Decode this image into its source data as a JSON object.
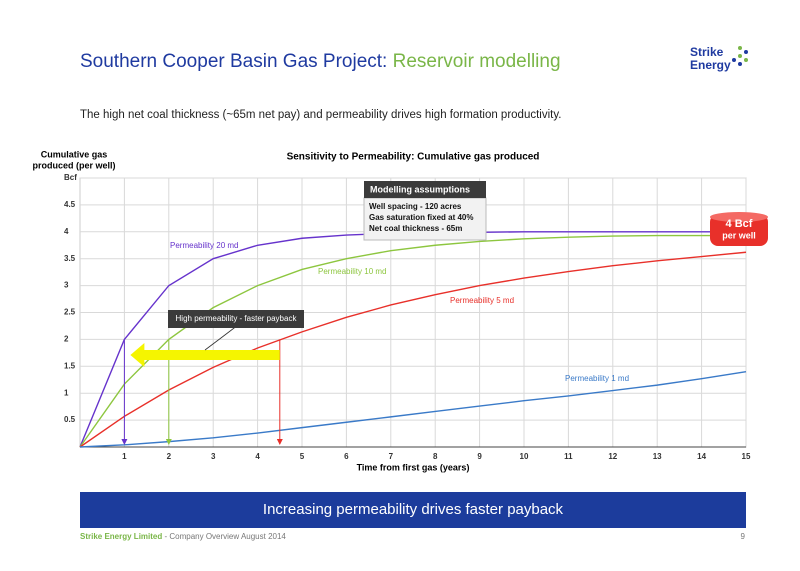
{
  "header": {
    "title": "Southern Cooper Basin Gas Project:",
    "title_highlight": "Reservoir modelling",
    "logo": [
      "Strike",
      "Energy"
    ]
  },
  "subtitle": "The high net coal thickness (~65m net pay) and permeability drives high formation productivity.",
  "chart_data": {
    "type": "line",
    "title": "Sensitivity to Permeability: Cumulative gas produced",
    "y_label": [
      "Cumulative gas",
      "produced (per well)"
    ],
    "x_label": "Time from first gas (years)",
    "x": [
      0,
      1,
      2,
      3,
      4,
      5,
      6,
      7,
      8,
      9,
      10,
      11,
      12,
      13,
      14,
      15
    ],
    "xlim": [
      0,
      15
    ],
    "ylim": [
      0,
      5
    ],
    "xticks": [
      1,
      2,
      3,
      4,
      5,
      6,
      7,
      8,
      9,
      10,
      11,
      12,
      13,
      14,
      15
    ],
    "yticks": [
      0.5,
      1,
      1.5,
      2,
      2.5,
      3,
      3.5,
      4,
      4.5,
      {
        "value": 5,
        "label": "Bcf"
      }
    ],
    "grid": true,
    "series": [
      {
        "name": "Permeability 20 md",
        "color": "#6633cc",
        "values": [
          0,
          2.0,
          3.0,
          3.5,
          3.75,
          3.88,
          3.94,
          3.97,
          3.98,
          3.99,
          4.0,
          4.0,
          4.0,
          4.0,
          4.0,
          4.0
        ]
      },
      {
        "name": "Permeability 10 md",
        "color": "#8dc63f",
        "values": [
          0,
          1.17,
          2.0,
          2.59,
          3.0,
          3.3,
          3.5,
          3.65,
          3.75,
          3.82,
          3.87,
          3.9,
          3.92,
          3.93,
          3.93,
          3.93
        ]
      },
      {
        "name": "Permeability 5 md",
        "color": "#e8302a",
        "values": [
          0,
          0.57,
          1.06,
          1.48,
          1.84,
          2.14,
          2.41,
          2.64,
          2.83,
          3.0,
          3.14,
          3.26,
          3.37,
          3.46,
          3.54,
          3.62
        ]
      },
      {
        "name": "Permeability 1 md",
        "color": "#3a7ac8",
        "values": [
          0,
          0.04,
          0.1,
          0.17,
          0.26,
          0.36,
          0.46,
          0.56,
          0.66,
          0.76,
          0.86,
          0.95,
          1.05,
          1.15,
          1.27,
          1.4
        ]
      }
    ],
    "payback_markers": [
      {
        "x": 1,
        "y": 2,
        "color": "#6633cc"
      },
      {
        "x": 2,
        "y": 2,
        "color": "#8dc63f"
      },
      {
        "x": 4.5,
        "y": 2,
        "color": "#e8302a"
      }
    ],
    "annotations": {
      "assumptions_title": "Modelling assumptions",
      "assumptions": [
        "Well spacing - 120 acres",
        "Gas saturation fixed at 40%",
        "Net coal thickness - 65m"
      ],
      "callout": "High permeability - faster payback",
      "badge": [
        "4 Bcf",
        "per well"
      ]
    }
  },
  "banner": "Increasing permeability drives faster payback",
  "footer": {
    "company": "Strike Energy Limited",
    "text": " - Company Overview August 2014",
    "page": "9"
  }
}
